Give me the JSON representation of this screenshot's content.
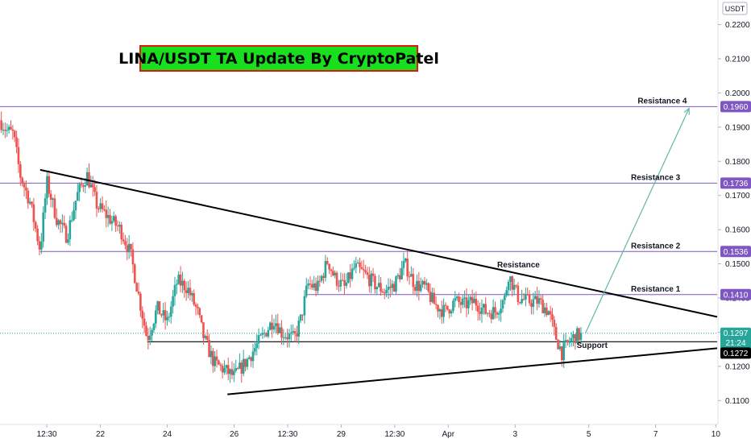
{
  "chart_data": {
    "type": "candlestick",
    "title": "LINA/USDT TA Update By CryptoPatel",
    "currency_label": "USDT",
    "y_axis": {
      "min": 0.103,
      "max": 0.2272,
      "ticks": [
        0.11,
        0.12,
        0.13,
        0.14,
        0.15,
        0.16,
        0.17,
        0.18,
        0.19,
        0.2,
        0.21,
        0.22
      ],
      "tick_labels": [
        "0.1100",
        "0.1200",
        "0.1300",
        "0.1400",
        "0.1500",
        "0.1600",
        "0.1700",
        "0.1800",
        "0.1900",
        "0.2000",
        "0.2100",
        "0.2200"
      ]
    },
    "x_axis": {
      "min": 0,
      "max": 10.72,
      "ticks": [
        {
          "x": 0.7,
          "label": "12:30"
        },
        {
          "x": 1.5,
          "label": "22"
        },
        {
          "x": 2.5,
          "label": "24"
        },
        {
          "x": 3.5,
          "label": "26"
        },
        {
          "x": 4.3,
          "label": "12:30"
        },
        {
          "x": 5.1,
          "label": "29"
        },
        {
          "x": 5.9,
          "label": "12:30"
        },
        {
          "x": 6.7,
          "label": "Apr"
        },
        {
          "x": 7.7,
          "label": "3"
        },
        {
          "x": 8.8,
          "label": "5"
        },
        {
          "x": 9.8,
          "label": "7"
        },
        {
          "x": 10.7,
          "label": "10"
        }
      ]
    },
    "price_path": [
      [
        0.0,
        0.192
      ],
      [
        0.1,
        0.189
      ],
      [
        0.2,
        0.188
      ],
      [
        0.3,
        0.176
      ],
      [
        0.45,
        0.168
      ],
      [
        0.6,
        0.154
      ],
      [
        0.7,
        0.174
      ],
      [
        0.85,
        0.163
      ],
      [
        1.0,
        0.158
      ],
      [
        1.15,
        0.17
      ],
      [
        1.3,
        0.176
      ],
      [
        1.45,
        0.167
      ],
      [
        1.6,
        0.164
      ],
      [
        1.8,
        0.16
      ],
      [
        1.95,
        0.153
      ],
      [
        2.05,
        0.143
      ],
      [
        2.2,
        0.128
      ],
      [
        2.35,
        0.137
      ],
      [
        2.5,
        0.133
      ],
      [
        2.65,
        0.145
      ],
      [
        2.8,
        0.143
      ],
      [
        2.95,
        0.136
      ],
      [
        3.05,
        0.128
      ],
      [
        3.2,
        0.121
      ],
      [
        3.35,
        0.119
      ],
      [
        3.5,
        0.117
      ],
      [
        3.7,
        0.122
      ],
      [
        3.9,
        0.128
      ],
      [
        4.1,
        0.134
      ],
      [
        4.2,
        0.13
      ],
      [
        4.4,
        0.128
      ],
      [
        4.5,
        0.134
      ],
      [
        4.6,
        0.144
      ],
      [
        4.75,
        0.143
      ],
      [
        4.9,
        0.151
      ],
      [
        5.0,
        0.146
      ],
      [
        5.15,
        0.143
      ],
      [
        5.3,
        0.149
      ],
      [
        5.45,
        0.147
      ],
      [
        5.6,
        0.144
      ],
      [
        5.75,
        0.142
      ],
      [
        5.9,
        0.144
      ],
      [
        6.05,
        0.15
      ],
      [
        6.2,
        0.144
      ],
      [
        6.35,
        0.143
      ],
      [
        6.5,
        0.138
      ],
      [
        6.65,
        0.136
      ],
      [
        6.8,
        0.139
      ],
      [
        6.95,
        0.138
      ],
      [
        7.1,
        0.139
      ],
      [
        7.25,
        0.136
      ],
      [
        7.4,
        0.136
      ],
      [
        7.55,
        0.14
      ],
      [
        7.6,
        0.147
      ],
      [
        7.75,
        0.14
      ],
      [
        7.9,
        0.139
      ],
      [
        8.05,
        0.139
      ],
      [
        8.2,
        0.136
      ],
      [
        8.3,
        0.129
      ],
      [
        8.4,
        0.124
      ],
      [
        8.5,
        0.127
      ],
      [
        8.6,
        0.129
      ],
      [
        8.7,
        0.129
      ]
    ],
    "horizontal_levels": [
      {
        "name": "Resistance 4",
        "price": 0.196,
        "label": "0.1960",
        "x_start": 0.0
      },
      {
        "name": "Resistance 3",
        "price": 0.1736,
        "label": "0.1736",
        "x_start": 0.0
      },
      {
        "name": "Resistance 2",
        "price": 0.1536,
        "label": "0.1536",
        "x_start": 0.6
      },
      {
        "name": "Resistance 1",
        "price": 0.141,
        "label": "0.1410",
        "x_start": 4.6
      }
    ],
    "support_level": {
      "name": "Support",
      "price": 0.1272,
      "label": "0.1272",
      "x_start": 2.2
    },
    "current_price": {
      "price": 0.1297,
      "label": "0.1297",
      "countdown": "21:24"
    },
    "trendlines": [
      {
        "name": "descending-resistance",
        "from": [
          0.6,
          0.1775
        ],
        "to": [
          10.72,
          0.1345
        ]
      },
      {
        "name": "ascending-support",
        "from": [
          3.4,
          0.1118
        ],
        "to": [
          10.72,
          0.1253
        ]
      }
    ],
    "projection": {
      "from": [
        8.75,
        0.1297
      ],
      "to": [
        10.3,
        0.1955
      ]
    },
    "annotations": [
      {
        "text": "Resistance 4",
        "x": 9.9,
        "price": 0.196
      },
      {
        "text": "Resistance 3",
        "x": 9.8,
        "price": 0.1736
      },
      {
        "text": "Resistance 2",
        "x": 9.8,
        "price": 0.1536
      },
      {
        "text": "Resistance 1",
        "x": 9.8,
        "price": 0.141
      },
      {
        "text": "Resistance",
        "x": 7.75,
        "price": 0.148
      },
      {
        "text": "Support",
        "x": 8.85,
        "price": 0.1245
      }
    ],
    "colors": {
      "up": "#26a69a",
      "down": "#ef5350",
      "level_line": "#7e57c2",
      "level_badge": "#7e57c2",
      "trendline": "#000000",
      "projection": "#5fb8a9",
      "title_bg": "#19e01e",
      "title_border": "#e3150f"
    }
  }
}
